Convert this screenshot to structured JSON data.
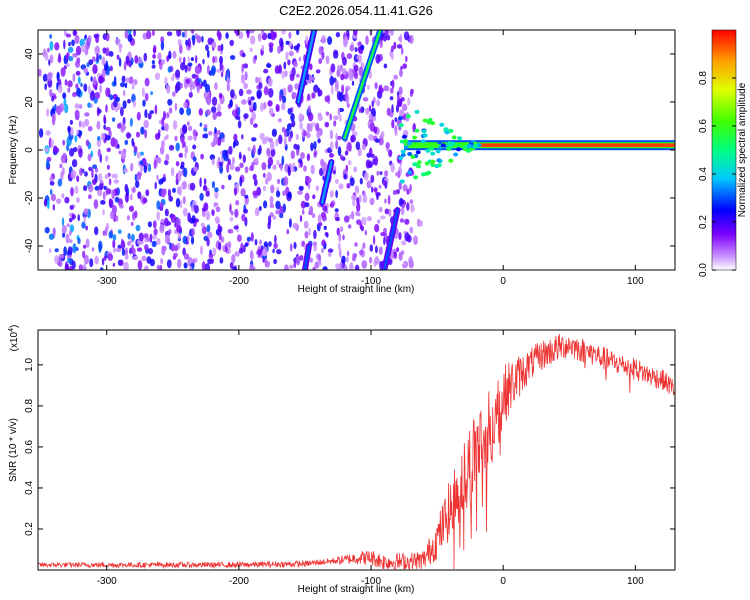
{
  "title": "C2E2.2026.054.11.41.G26",
  "colors": {
    "snr_line": "#ee3333",
    "axis": "#000000"
  },
  "chart_data": [
    {
      "type": "heatmap",
      "name": "spectrogram",
      "xlabel": "Height of straight line (km)",
      "ylabel": "Frequency (Hz)",
      "xlim": [
        -352,
        130
      ],
      "ylim": [
        -50,
        50
      ],
      "xticks": [
        -300,
        -200,
        -100,
        0,
        100
      ],
      "xtick_labels": [
        "-300",
        "-200",
        "-100",
        "0",
        "100"
      ],
      "yticks": [
        -40,
        -20,
        0,
        20,
        40
      ],
      "ytick_labels": [
        "-40",
        "-20",
        "0",
        "20",
        "40"
      ],
      "colorbar": {
        "label": "Normalized spectral amplitude",
        "range": [
          0,
          1
        ],
        "ticks": [
          0,
          0.2,
          0.4,
          0.6,
          0.8
        ],
        "tick_labels": [
          "0.0",
          "0.2",
          "0.4",
          "0.6",
          "0.8"
        ],
        "colormap": "rainbow (violet to red)"
      },
      "features": {
        "noise_region_x": [
          -352,
          -75
        ],
        "carrier_line": {
          "x_start": -75,
          "x_end": 130,
          "freq_hz": 2,
          "amplitude": 0.95
        },
        "streaks": [
          {
            "from": [
              -155,
              20
            ],
            "to": [
              -143,
              50
            ],
            "amplitude": 0.35
          },
          {
            "from": [
              -120,
              5
            ],
            "to": [
              -93,
              50
            ],
            "amplitude": 0.55
          },
          {
            "from": [
              -90,
              -50
            ],
            "to": [
              -80,
              -25
            ],
            "amplitude": 0.3
          },
          {
            "from": [
              -150,
              -50
            ],
            "to": [
              -147,
              -40
            ],
            "amplitude": 0.3
          },
          {
            "from": [
              -137,
              -22
            ],
            "to": [
              -130,
              -5
            ],
            "amplitude": 0.35
          }
        ]
      }
    },
    {
      "type": "line",
      "name": "snr",
      "xlabel": "Height of straight line (km)",
      "ylabel": "SNR (10 * v/v)",
      "y_scale_label": "(x10",
      "y_scale_exponent": "4",
      "xlim": [
        -352,
        130
      ],
      "ylim": [
        0,
        1.17
      ],
      "xticks": [
        -300,
        -200,
        -100,
        0,
        100
      ],
      "xtick_labels": [
        "-300",
        "-200",
        "-100",
        "0",
        "100"
      ],
      "yticks": [
        0.2,
        0.4,
        0.6,
        0.8,
        1.0
      ],
      "ytick_labels": [
        "0.2",
        "0.4",
        "0.6",
        "0.8",
        "1.0"
      ],
      "envelope": {
        "x": [
          -352,
          -200,
          -150,
          -120,
          -110,
          -100,
          -90,
          -70,
          -60,
          -50,
          -40,
          -30,
          -20,
          -10,
          0,
          10,
          20,
          30,
          40,
          50,
          60,
          70,
          80,
          90,
          100,
          110,
          120,
          130
        ],
        "y": [
          0.025,
          0.025,
          0.03,
          0.05,
          0.06,
          0.06,
          0.04,
          0.04,
          0.05,
          0.15,
          0.3,
          0.45,
          0.6,
          0.7,
          0.85,
          0.93,
          1.0,
          1.05,
          1.08,
          1.1,
          1.07,
          1.05,
          1.02,
          1.0,
          0.98,
          0.95,
          0.93,
          0.88
        ]
      },
      "noise_amplitude": {
        "x": [
          -352,
          -130,
          -100,
          -60,
          -40,
          -20,
          0,
          20,
          60,
          130
        ],
        "y": [
          0.012,
          0.015,
          0.04,
          0.05,
          0.15,
          0.22,
          0.15,
          0.08,
          0.06,
          0.05
        ]
      }
    }
  ]
}
